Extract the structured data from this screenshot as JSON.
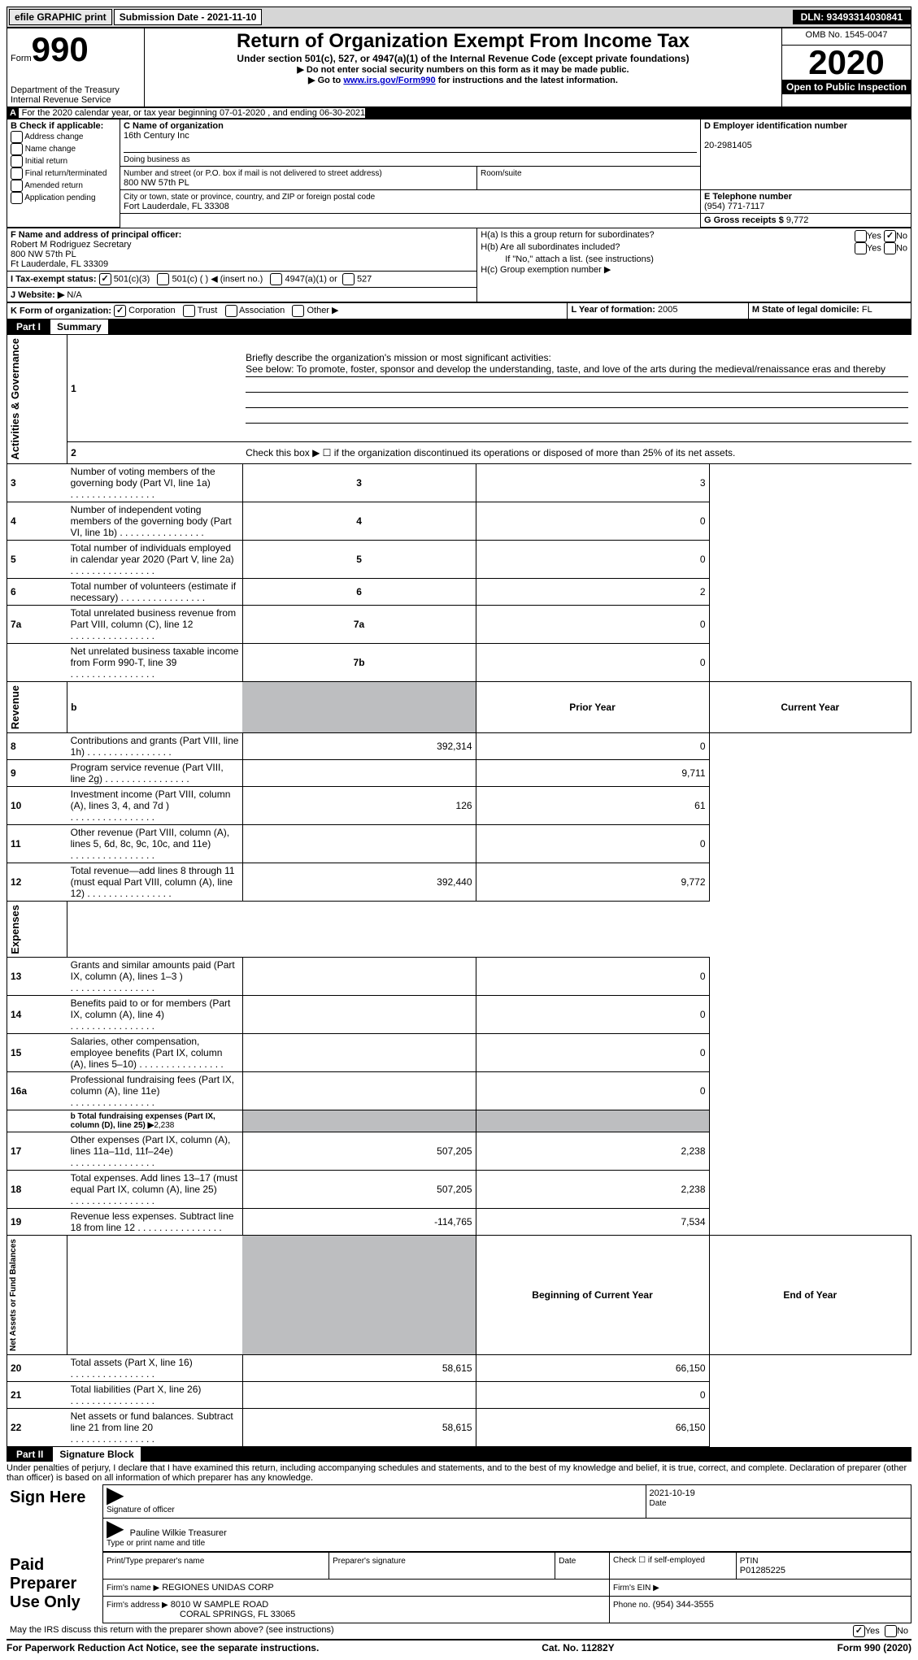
{
  "topbar": {
    "efile": "efile GRAPHIC print",
    "submission": "Submission Date - 2021-11-10",
    "dln": "DLN: 93493314030841"
  },
  "header": {
    "form_word": "Form",
    "form_num": "990",
    "dept": "Department of the Treasury",
    "irs": "Internal Revenue Service",
    "title": "Return of Organization Exempt From Income Tax",
    "subtitle": "Under section 501(c), 527, or 4947(a)(1) of the Internal Revenue Code (except private foundations)",
    "inst1": "▶ Do not enter social security numbers on this form as it may be made public.",
    "inst2_pre": "▶ Go to ",
    "inst2_link": "www.irs.gov/Form990",
    "inst2_post": " for instructions and the latest information.",
    "omb": "OMB No. 1545-0047",
    "year": "2020",
    "open": "Open to Public Inspection"
  },
  "sectionA": {
    "line": "For the 2020 calendar year, or tax year beginning 07-01-2020   , and ending 06-30-2021"
  },
  "boxB": {
    "label": "B Check if applicable:",
    "opts": [
      "Address change",
      "Name change",
      "Initial return",
      "Final return/terminated",
      "Amended return",
      "Application pending"
    ]
  },
  "boxC": {
    "name_label": "C Name of organization",
    "name": "16th Century Inc",
    "dba_label": "Doing business as",
    "street_label": "Number and street (or P.O. box if mail is not delivered to street address)",
    "room_label": "Room/suite",
    "street": "800 NW 57th PL",
    "city_label": "City or town, state or province, country, and ZIP or foreign postal code",
    "city": "Fort Lauderdale, FL  33308"
  },
  "boxD": {
    "label": "D Employer identification number",
    "val": "20-2981405"
  },
  "boxE": {
    "label": "E Telephone number",
    "val": "(954) 771-7117"
  },
  "boxG": {
    "label": "G Gross receipts $",
    "val": "9,772"
  },
  "boxF": {
    "label": "F  Name and address of principal officer:",
    "name": "Robert M Rodriguez Secretary",
    "street": "800 NW 57th PL",
    "city": "Ft Lauderdale, FL  33309"
  },
  "boxH": {
    "a": "H(a)  Is this a group return for subordinates?",
    "b": "H(b)  Are all subordinates included?",
    "bnote": "If \"No,\" attach a list. (see instructions)",
    "c": "H(c)  Group exemption number ▶",
    "yes": "Yes",
    "no": "No"
  },
  "boxI": {
    "label": "I  Tax-exempt status:",
    "opt1": "501(c)(3)",
    "opt2": "501(c) (  ) ◀ (insert no.)",
    "opt3": "4947(a)(1) or",
    "opt4": "527"
  },
  "boxJ": {
    "label": "J  Website: ▶",
    "val": "N/A"
  },
  "boxK": {
    "label": "K Form of organization:",
    "opts": [
      "Corporation",
      "Trust",
      "Association",
      "Other ▶"
    ]
  },
  "boxL": {
    "label": "L Year of formation:",
    "val": "2005"
  },
  "boxM": {
    "label": "M State of legal domicile:",
    "val": "FL"
  },
  "part1": {
    "num": "Part I",
    "title": "Summary"
  },
  "summary": {
    "line1_label": "Briefly describe the organization's mission or most significant activities:",
    "line1_text": "See below: To promote, foster, sponsor and develop the understanding, taste, and love of the arts during the medieval/renaissance eras and thereby",
    "line2": "Check this box ▶ ☐  if the organization discontinued its operations or disposed of more than 25% of its net assets.",
    "rows_simple": [
      {
        "n": "3",
        "d": "Number of voting members of the governing body (Part VI, line 1a)",
        "b": "3",
        "v": "3"
      },
      {
        "n": "4",
        "d": "Number of independent voting members of the governing body (Part VI, line 1b)",
        "b": "4",
        "v": "0"
      },
      {
        "n": "5",
        "d": "Total number of individuals employed in calendar year 2020 (Part V, line 2a)",
        "b": "5",
        "v": "0"
      },
      {
        "n": "6",
        "d": "Total number of volunteers (estimate if necessary)",
        "b": "6",
        "v": "2"
      },
      {
        "n": "7a",
        "d": "Total unrelated business revenue from Part VIII, column (C), line 12",
        "b": "7a",
        "v": "0"
      },
      {
        "n": "",
        "d": "Net unrelated business taxable income from Form 990-T, line 39",
        "b": "7b",
        "v": "0"
      }
    ],
    "col_headers": {
      "b": "b",
      "prior": "Prior Year",
      "current": "Current Year"
    },
    "rows_two": [
      {
        "n": "8",
        "d": "Contributions and grants (Part VIII, line 1h)",
        "p": "392,314",
        "c": "0"
      },
      {
        "n": "9",
        "d": "Program service revenue (Part VIII, line 2g)",
        "p": "",
        "c": "9,711"
      },
      {
        "n": "10",
        "d": "Investment income (Part VIII, column (A), lines 3, 4, and 7d )",
        "p": "126",
        "c": "61"
      },
      {
        "n": "11",
        "d": "Other revenue (Part VIII, column (A), lines 5, 6d, 8c, 9c, 10c, and 11e)",
        "p": "",
        "c": "0"
      },
      {
        "n": "12",
        "d": "Total revenue—add lines 8 through 11 (must equal Part VIII, column (A), line 12)",
        "p": "392,440",
        "c": "9,772"
      },
      {
        "n": "13",
        "d": "Grants and similar amounts paid (Part IX, column (A), lines 1–3 )",
        "p": "",
        "c": "0"
      },
      {
        "n": "14",
        "d": "Benefits paid to or for members (Part IX, column (A), line 4)",
        "p": "",
        "c": "0"
      },
      {
        "n": "15",
        "d": "Salaries, other compensation, employee benefits (Part IX, column (A), lines 5–10)",
        "p": "",
        "c": "0"
      },
      {
        "n": "16a",
        "d": "Professional fundraising fees (Part IX, column (A), line 11e)",
        "p": "",
        "c": "0"
      }
    ],
    "line16b_label": "b   Total fundraising expenses (Part IX, column (D), line 25) ▶",
    "line16b_val": "2,238",
    "rows_two_b": [
      {
        "n": "17",
        "d": "Other expenses (Part IX, column (A), lines 11a–11d, 11f–24e)",
        "p": "507,205",
        "c": "2,238"
      },
      {
        "n": "18",
        "d": "Total expenses. Add lines 13–17 (must equal Part IX, column (A), line 25)",
        "p": "507,205",
        "c": "2,238"
      },
      {
        "n": "19",
        "d": "Revenue less expenses. Subtract line 18 from line 12",
        "p": "-114,765",
        "c": "7,534"
      }
    ],
    "na_headers": {
      "begin": "Beginning of Current Year",
      "end": "End of Year"
    },
    "rows_na": [
      {
        "n": "20",
        "d": "Total assets (Part X, line 16)",
        "p": "58,615",
        "c": "66,150"
      },
      {
        "n": "21",
        "d": "Total liabilities (Part X, line 26)",
        "p": "",
        "c": "0"
      },
      {
        "n": "22",
        "d": "Net assets or fund balances. Subtract line 21 from line 20",
        "p": "58,615",
        "c": "66,150"
      }
    ],
    "vlabels": {
      "gov": "Activities & Governance",
      "rev": "Revenue",
      "exp": "Expenses",
      "na": "Net Assets or Fund Balances"
    }
  },
  "part2": {
    "num": "Part II",
    "title": "Signature Block"
  },
  "penalties": "Under penalties of perjury, I declare that I have examined this return, including accompanying schedules and statements, and to the best of my knowledge and belief, it is true, correct, and complete. Declaration of preparer (other than officer) is based on all information of which preparer has any knowledge.",
  "sign": {
    "here": "Sign Here",
    "sig_officer": "Signature of officer",
    "date": "Date",
    "date_val": "2021-10-19",
    "name": "Pauline Wilkie Treasurer",
    "name_label": "Type or print name and title"
  },
  "paid": {
    "title": "Paid Preparer Use Only",
    "pt_name": "Print/Type preparer's name",
    "pt_sig": "Preparer's signature",
    "pt_date": "Date",
    "check": "Check ☐ if self-employed",
    "ptin": "PTIN",
    "ptin_val": "P01285225",
    "firm_name_l": "Firm's name   ▶",
    "firm_name": "REGIONES UNIDAS CORP",
    "firm_ein_l": "Firm's EIN ▶",
    "firm_addr_l": "Firm's address ▶",
    "firm_addr1": "8010 W SAMPLE ROAD",
    "firm_addr2": "CORAL SPRINGS, FL  33065",
    "phone_l": "Phone no.",
    "phone": "(954) 344-3555"
  },
  "discuss": {
    "q": "May the IRS discuss this return with the preparer shown above? (see instructions)",
    "yes": "Yes",
    "no": "No"
  },
  "footer": {
    "left": "For Paperwork Reduction Act Notice, see the separate instructions.",
    "mid": "Cat. No. 11282Y",
    "right": "Form 990 (2020)"
  }
}
